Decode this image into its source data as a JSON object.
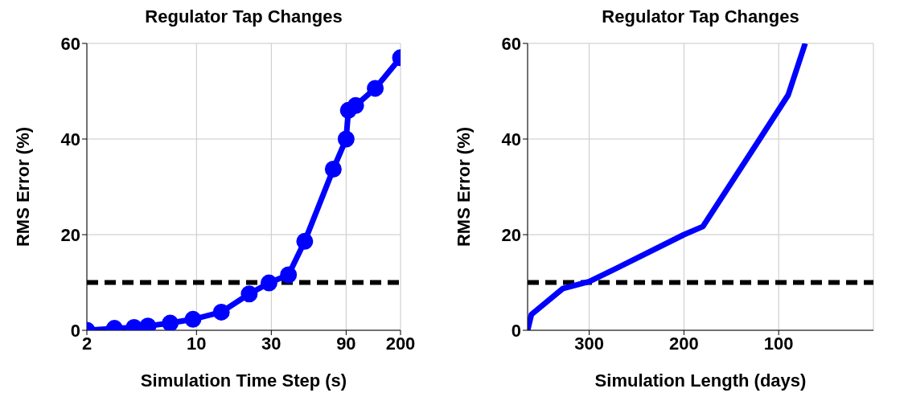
{
  "chart_data": [
    {
      "type": "line",
      "title": "Regulator Tap Changes",
      "xlabel": "Simulation Time Step (s)",
      "ylabel": "RMS Error (%)",
      "log": "x",
      "marker": "circle",
      "grid": true,
      "x": [
        2,
        3,
        4,
        4.9,
        6.8,
        9.5,
        14.4,
        21.7,
        29,
        38.6,
        49,
        74.5,
        90,
        93,
        103.5,
        138,
        200
      ],
      "series": [
        {
          "color": "#0000ff",
          "values": [
            0,
            0.4,
            0.6,
            0.9,
            1.5,
            2.3,
            3.8,
            7.6,
            9.9,
            11.6,
            18.6,
            33.7,
            40,
            46,
            47,
            50.6,
            57
          ]
        }
      ],
      "xlim": [
        2,
        200
      ],
      "xticks": [
        2,
        10,
        30,
        90,
        200
      ],
      "ylim": [
        0,
        60
      ],
      "yticks": [
        0,
        20,
        40,
        60
      ],
      "ref_lines": [
        {
          "axis": "y",
          "value": 10,
          "color": "#000000",
          "line_style": "dashed"
        }
      ]
    },
    {
      "type": "line",
      "title": "Regulator Tap Changes",
      "xlabel": "Simulation Length (days)",
      "ylabel": "RMS Error (%)",
      "grid": true,
      "x": [
        365,
        361,
        328,
        300,
        276,
        200,
        180,
        120,
        90,
        72
      ],
      "series": [
        {
          "color": "#0000ff",
          "values": [
            0,
            3.3,
            8.7,
            10.2,
            12.5,
            20,
            21.7,
            40,
            49.2,
            60
          ]
        }
      ],
      "xlim": [
        365,
        0
      ],
      "xticks": [
        300,
        200,
        100
      ],
      "ylim": [
        0,
        60
      ],
      "yticks": [
        0,
        20,
        40,
        60
      ],
      "ref_lines": [
        {
          "axis": "y",
          "value": 10,
          "color": "#000000",
          "line_style": "dashed"
        }
      ]
    }
  ]
}
